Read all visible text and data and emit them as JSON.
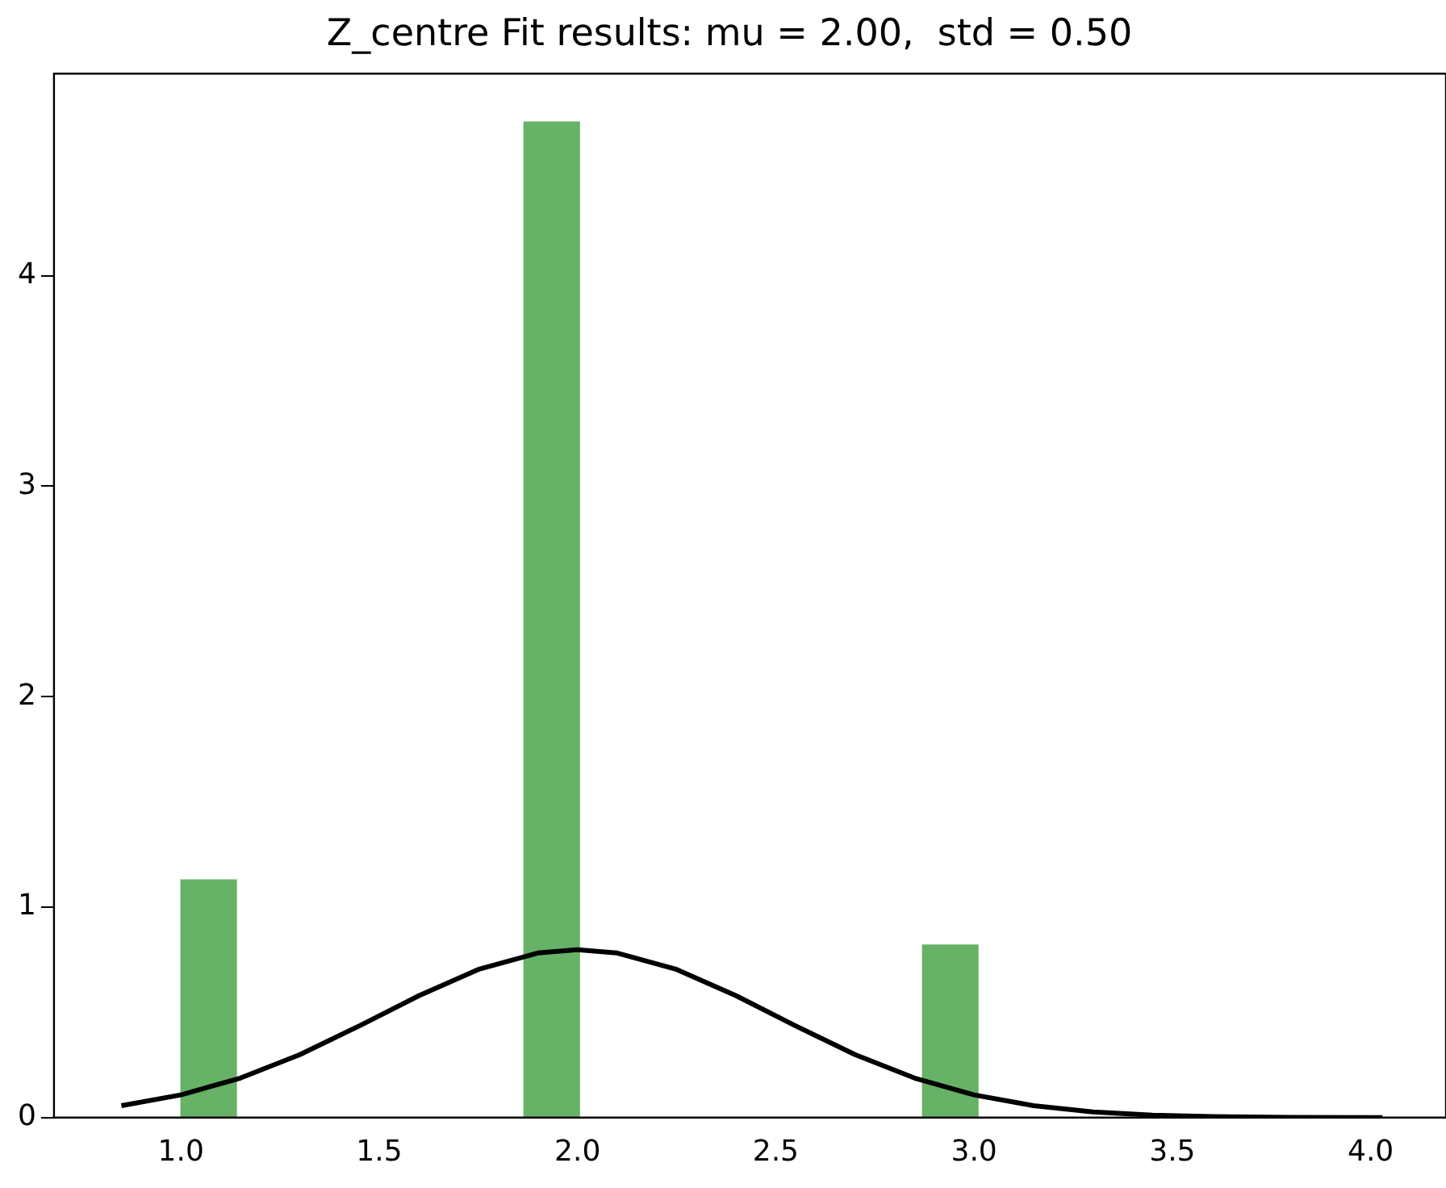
{
  "chart_data": {
    "type": "histogram",
    "title": "Z_centre Fit results: mu = 2.00,  std = 0.50",
    "bins": [
      1.0,
      1.14,
      1.29,
      1.43,
      1.57,
      1.72,
      1.86,
      2.01,
      2.15,
      2.29,
      2.44,
      2.58,
      2.72,
      2.87,
      3.01
    ],
    "values": [
      1.13,
      0,
      0,
      0,
      0,
      0,
      4.73,
      0,
      0,
      0,
      0,
      0,
      0,
      0.82
    ],
    "color": "#66b266",
    "series": [
      {
        "type": "line",
        "color": "#000000",
        "x": [
          0.85,
          1.0,
          1.15,
          1.3,
          1.45,
          1.6,
          1.75,
          1.9,
          2.0,
          2.1,
          2.25,
          2.4,
          2.55,
          2.7,
          2.85,
          3.0,
          3.15,
          3.3,
          3.45,
          3.6,
          3.8,
          4.03
        ],
        "values": [
          0.057,
          0.108,
          0.188,
          0.299,
          0.436,
          0.579,
          0.704,
          0.782,
          0.798,
          0.782,
          0.704,
          0.579,
          0.436,
          0.299,
          0.188,
          0.108,
          0.057,
          0.027,
          0.012,
          0.005,
          0.001,
          0
        ]
      }
    ],
    "xlim": [
      0.68,
      4.19
    ],
    "xticks": [
      {
        "value": 1,
        "label": "1.0"
      },
      {
        "value": 1.5,
        "label": "1.5"
      },
      {
        "value": 2,
        "label": "2.0"
      },
      {
        "value": 2.5,
        "label": "2.5"
      },
      {
        "value": 3,
        "label": "3.0"
      },
      {
        "value": 3.5,
        "label": "3.5"
      },
      {
        "value": 4,
        "label": "4.0"
      }
    ],
    "ylim": [
      0,
      4.96
    ],
    "yticks": [
      0,
      1,
      2,
      3,
      4
    ],
    "grid": false,
    "legend": false
  }
}
